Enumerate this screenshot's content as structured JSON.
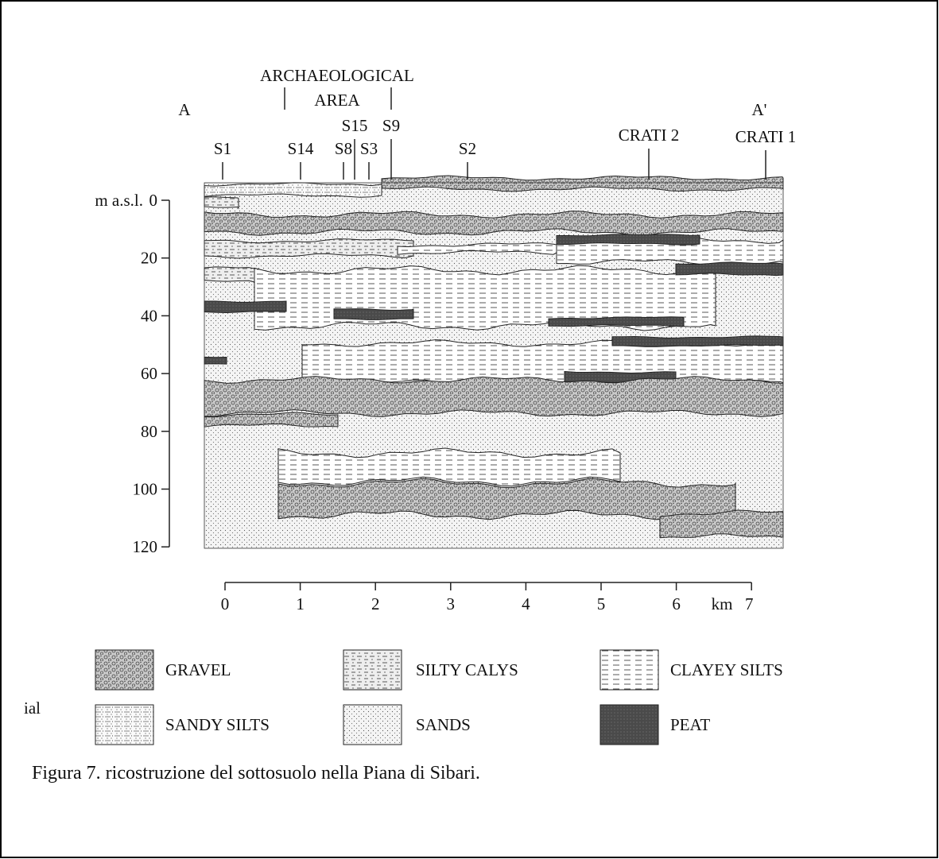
{
  "figure": {
    "labels": {
      "a": "A",
      "a_prime": "A'",
      "archaeological": "ARCHAEOLOGICAL",
      "area": "AREA"
    },
    "boreholes": [
      "S1",
      "S14",
      "S8",
      "S15",
      "S3",
      "S9",
      "S2",
      "CRATI 2",
      "CRATI 1"
    ],
    "depth_axis": {
      "unit": "m a.s.l.",
      "ticks": [
        "0",
        "20",
        "40",
        "60",
        "80",
        "100",
        "120"
      ]
    },
    "distance_axis": {
      "unit": "km",
      "ticks": [
        "0",
        "1",
        "2",
        "3",
        "4",
        "5",
        "6",
        "7"
      ]
    },
    "legend": [
      "GRAVEL",
      "SILTY CALYS",
      "CLAYEY SILTS",
      "SANDY SILTS",
      "SANDS",
      "PEAT"
    ],
    "margin_note": "ial",
    "caption": "Figura 7. ricostruzione del sottosuolo nella Piana di Sibari."
  }
}
